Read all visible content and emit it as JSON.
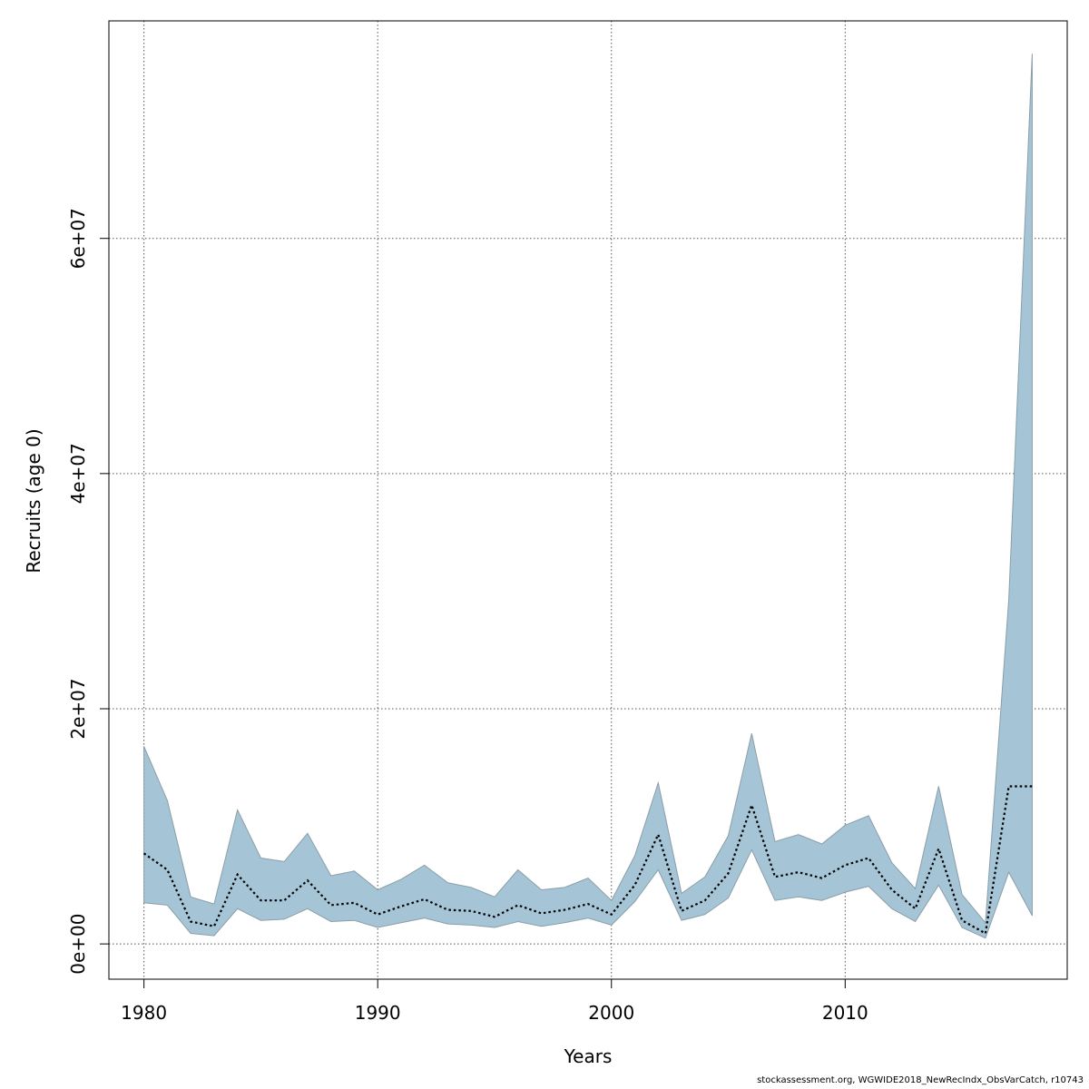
{
  "chart_data": {
    "type": "area",
    "xlabel": "Years",
    "ylabel": "Recruits (age 0)",
    "xlim": [
      1978.5,
      2019.5
    ],
    "ylim": [
      -3000000,
      78500000
    ],
    "x_ticks": [
      1980,
      1990,
      2000,
      2010
    ],
    "x_tick_labels": [
      "1980",
      "1990",
      "2000",
      "2010"
    ],
    "y_ticks": [
      0,
      20000000,
      40000000,
      60000000
    ],
    "y_tick_labels": [
      "0e+00",
      "2e+07",
      "4e+07",
      "6e+07"
    ],
    "grid": true,
    "colors": {
      "band_fill": "#a5c5d6",
      "band_stroke": "#8a9ea8",
      "line": "#000000",
      "grid": "#555555"
    },
    "x": [
      1980,
      1981,
      1982,
      1983,
      1984,
      1985,
      1986,
      1987,
      1988,
      1989,
      1990,
      1991,
      1992,
      1993,
      1994,
      1995,
      1996,
      1997,
      1998,
      1999,
      2000,
      2001,
      2002,
      2003,
      2004,
      2005,
      2006,
      2007,
      2008,
      2009,
      2010,
      2011,
      2012,
      2013,
      2014,
      2015,
      2016,
      2017,
      2018
    ],
    "series": [
      {
        "role": "estimate",
        "style": "dotted",
        "values": [
          7700000,
          6300000,
          1900000,
          1500000,
          5900000,
          3700000,
          3700000,
          5400000,
          3300000,
          3500000,
          2500000,
          3200000,
          3800000,
          2900000,
          2800000,
          2300000,
          3300000,
          2600000,
          2900000,
          3400000,
          2500000,
          5000000,
          9300000,
          2800000,
          3700000,
          6000000,
          11800000,
          5700000,
          6100000,
          5600000,
          6700000,
          7300000,
          4600000,
          3000000,
          8100000,
          2000000,
          900000,
          13400000,
          13400000
        ]
      },
      {
        "role": "upper",
        "values": [
          16800000,
          12200000,
          4000000,
          3400000,
          11400000,
          7300000,
          7000000,
          9400000,
          5800000,
          6200000,
          4600000,
          5500000,
          6700000,
          5200000,
          4800000,
          4000000,
          6300000,
          4600000,
          4800000,
          5600000,
          3700000,
          7500000,
          13700000,
          4300000,
          5700000,
          9200000,
          17900000,
          8700000,
          9300000,
          8500000,
          10100000,
          10900000,
          6900000,
          4700000,
          13400000,
          4200000,
          1800000,
          29300000,
          75700000
        ]
      },
      {
        "role": "lower",
        "values": [
          3500000,
          3300000,
          900000,
          700000,
          3000000,
          2000000,
          2100000,
          3000000,
          1900000,
          2000000,
          1400000,
          1800000,
          2200000,
          1700000,
          1600000,
          1400000,
          1900000,
          1500000,
          1800000,
          2200000,
          1600000,
          3600000,
          6300000,
          2000000,
          2500000,
          3900000,
          8000000,
          3700000,
          4000000,
          3700000,
          4400000,
          4900000,
          3000000,
          1900000,
          5000000,
          1400000,
          500000,
          6100000,
          2400000
        ]
      }
    ]
  },
  "footnote": "stockassessment.org, WGWIDE2018_NewRecIndx_ObsVarCatch, r10743"
}
